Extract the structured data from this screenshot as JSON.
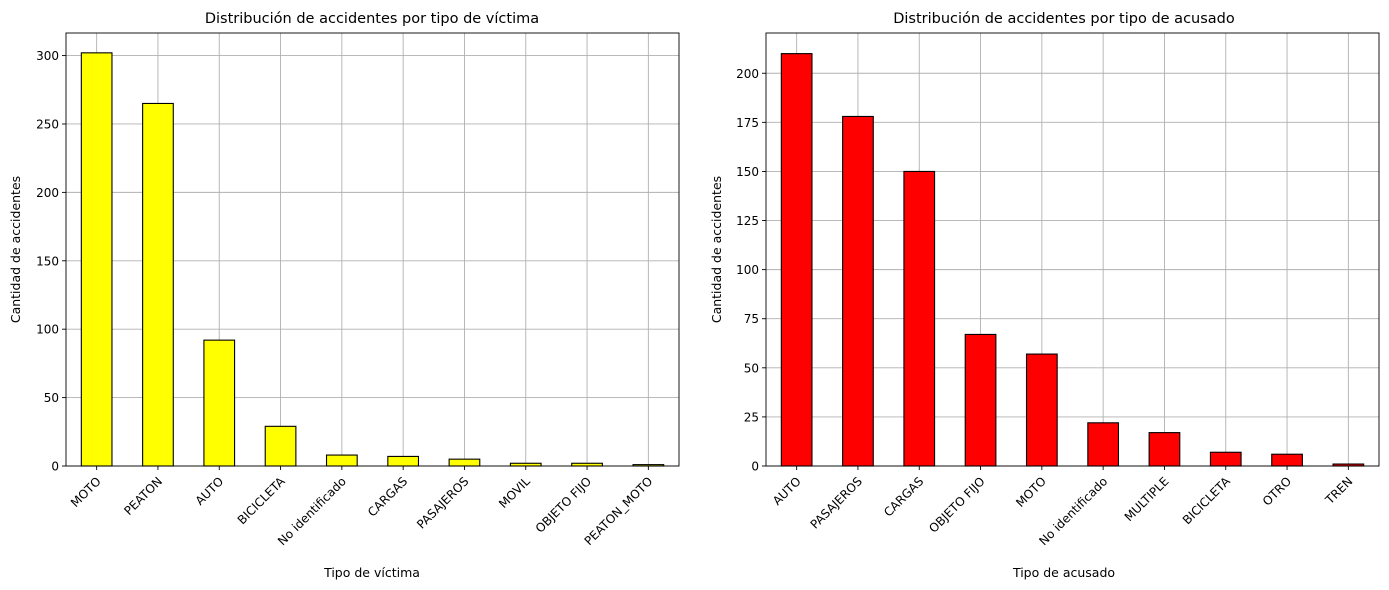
{
  "chart_data": [
    {
      "type": "bar",
      "title": "Distribución de accidentes por tipo de víctima",
      "xlabel": "Tipo de víctima",
      "ylabel": "Cantidad de accidentes",
      "categories": [
        "MOTO",
        "PEATON",
        "AUTO",
        "BICICLETA",
        "No identificado",
        "CARGAS",
        "PASAJEROS",
        "MOVIL",
        "OBJETO FIJO",
        "PEATON_MOTO"
      ],
      "values": [
        302,
        265,
        92,
        29,
        8,
        7,
        5,
        2,
        2,
        1
      ],
      "ylim": [
        0,
        316.5
      ],
      "yticks": [
        0,
        50,
        100,
        150,
        200,
        250,
        300
      ],
      "grid": true,
      "color": "#ffff00",
      "edgecolor": "#000000"
    },
    {
      "type": "bar",
      "title": "Distribución de accidentes por tipo de acusado",
      "xlabel": "Tipo de acusado",
      "ylabel": "Cantidad de accidentes",
      "categories": [
        "AUTO",
        "PASAJEROS",
        "CARGAS",
        "OBJETO FIJO",
        "MOTO",
        "No identificado",
        "MULTIPLE",
        "BICICLETA",
        "OTRO",
        "TREN"
      ],
      "values": [
        210,
        178,
        150,
        67,
        57,
        22,
        17,
        7,
        6,
        1
      ],
      "ylim": [
        0,
        220.5
      ],
      "yticks": [
        0,
        25,
        50,
        75,
        100,
        125,
        150,
        175,
        200
      ],
      "grid": true,
      "color": "#ff0000",
      "edgecolor": "#000000"
    }
  ]
}
